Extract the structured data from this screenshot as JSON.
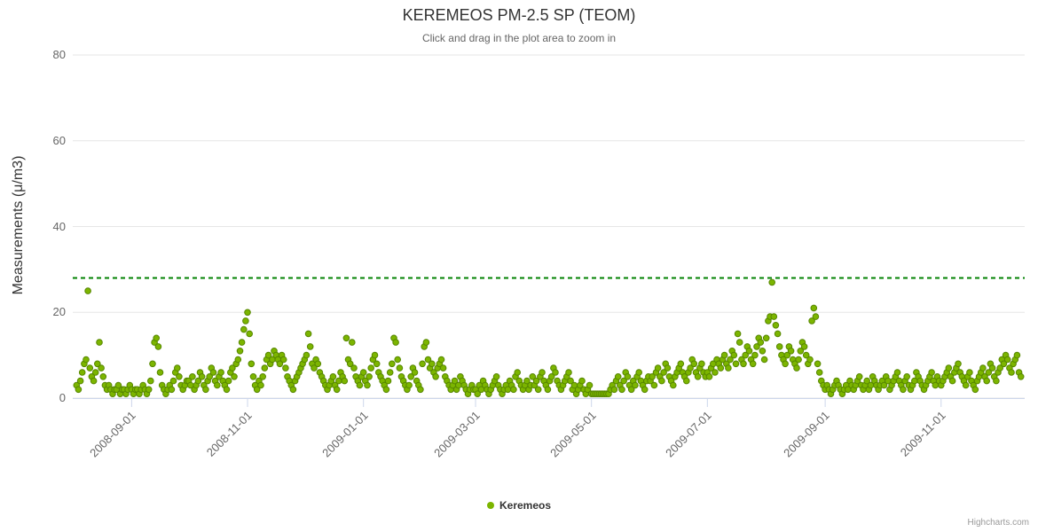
{
  "header": {
    "title": "KEREMEOS PM-2.5 SP (TEOM)",
    "subtitle": "Click and drag in the plot area to zoom in"
  },
  "legend": {
    "label": "Keremeos"
  },
  "credits": {
    "label": "Highcharts.com"
  },
  "colors": {
    "point_fill": "#7cb500",
    "point_stroke": "#568600",
    "threshold_line": "#008000",
    "gridline": "#e6e6e6",
    "axis_line": "#ccd6eb",
    "tick_mark": "#ccd6eb"
  },
  "chart_data": {
    "type": "scatter",
    "title": "KEREMEOS PM-2.5 SP (TEOM)",
    "subtitle": "Click and drag in the plot area to zoom in",
    "xlabel": "",
    "ylabel": "Measurements (μ/m3)",
    "ylim": [
      0,
      80
    ],
    "y_ticks": [
      0,
      20,
      40,
      60,
      80
    ],
    "grid": "horizontal-only",
    "legend_position": "bottom-center",
    "x_range": [
      "2008-08-01",
      "2009-12-15"
    ],
    "x_ticks": [
      "2008-09-01",
      "2008-11-01",
      "2009-01-01",
      "2009-03-01",
      "2009-05-01",
      "2009-07-01",
      "2009-09-01",
      "2009-11-01"
    ],
    "threshold": {
      "value": 28,
      "color": "#008000",
      "style": "dashed"
    },
    "series": [
      {
        "name": "Keremeos",
        "color": "#7cb500",
        "unit": "μ/m3",
        "cadence": "daily",
        "values_by_month": [
          {
            "m": "2008-08",
            "d": 3,
            "v": [
              3,
              2,
              4,
              6,
              8,
              9,
              25,
              7,
              5,
              4,
              6,
              8,
              13,
              7,
              5,
              3,
              2,
              3,
              2,
              1,
              2,
              2,
              3,
              1,
              2,
              2,
              1,
              2,
              3
            ]
          },
          {
            "m": "2008-09",
            "d": 1,
            "v": [
              2,
              1,
              2,
              2,
              1,
              2,
              3,
              2,
              1,
              2,
              4,
              8,
              13,
              14,
              12,
              6,
              3,
              2,
              1,
              2,
              3,
              2,
              4,
              6,
              7,
              5,
              3,
              2,
              3,
              4
            ]
          },
          {
            "m": "2008-10",
            "d": 1,
            "v": [
              4,
              3,
              5,
              2,
              3,
              4,
              6,
              5,
              3,
              2,
              4,
              5,
              7,
              6,
              4,
              3,
              5,
              6,
              4,
              3,
              2,
              4,
              6,
              7,
              5,
              8,
              9,
              11,
              13,
              16,
              18
            ]
          },
          {
            "m": "2008-11",
            "d": 1,
            "v": [
              20,
              15,
              8,
              5,
              3,
              2,
              4,
              3,
              5,
              7,
              9,
              10,
              8,
              9,
              11,
              10,
              9,
              8,
              10,
              9,
              7,
              5,
              4,
              3,
              2,
              4,
              5,
              6,
              7,
              8
            ]
          },
          {
            "m": "2008-12",
            "d": 1,
            "v": [
              9,
              10,
              15,
              12,
              8,
              7,
              9,
              8,
              6,
              5,
              4,
              3,
              2,
              3,
              4,
              5,
              3,
              2,
              4,
              6,
              5,
              4,
              14,
              9,
              8,
              13,
              7,
              5,
              4,
              3,
              5
            ]
          },
          {
            "m": "2009-01",
            "d": 1,
            "v": [
              6,
              4,
              3,
              5,
              7,
              9,
              10,
              8,
              6,
              5,
              4,
              3,
              2,
              4,
              6,
              8,
              14,
              13,
              9,
              7,
              5,
              4,
              3,
              2,
              3,
              5,
              7,
              6,
              4,
              3,
              2
            ]
          },
          {
            "m": "2009-02",
            "d": 1,
            "v": [
              8,
              12,
              13,
              9,
              7,
              8,
              6,
              5,
              7,
              8,
              9,
              7,
              5,
              4,
              3,
              2,
              3,
              4,
              2,
              3,
              5,
              4,
              3,
              2,
              1,
              2,
              3,
              2
            ]
          },
          {
            "m": "2009-03",
            "d": 1,
            "v": [
              2,
              1,
              3,
              2,
              4,
              3,
              2,
              1,
              2,
              3,
              4,
              5,
              3,
              2,
              1,
              2,
              3,
              2,
              4,
              3,
              2,
              5,
              6,
              4,
              3,
              2,
              3,
              4,
              2,
              3,
              5
            ]
          },
          {
            "m": "2009-04",
            "d": 1,
            "v": [
              3,
              4,
              2,
              5,
              6,
              4,
              3,
              2,
              4,
              5,
              7,
              6,
              4,
              3,
              2,
              3,
              4,
              5,
              6,
              4,
              2,
              3,
              1,
              2,
              3,
              4,
              2,
              1,
              2,
              3
            ]
          },
          {
            "m": "2009-05",
            "d": 1,
            "v": [
              1,
              1,
              1,
              1,
              1,
              1,
              1,
              1,
              1,
              1,
              2,
              3,
              2,
              4,
              5,
              3,
              2,
              4,
              6,
              5,
              3,
              2,
              4,
              3,
              5,
              6,
              4,
              3,
              2,
              4,
              5
            ]
          },
          {
            "m": "2009-06",
            "d": 1,
            "v": [
              4,
              5,
              3,
              6,
              7,
              5,
              4,
              6,
              8,
              7,
              5,
              4,
              3,
              5,
              6,
              7,
              8,
              6,
              5,
              4,
              6,
              7,
              9,
              8,
              6,
              5,
              7,
              8,
              6,
              5
            ]
          },
          {
            "m": "2009-07",
            "d": 1,
            "v": [
              6,
              5,
              7,
              8,
              6,
              9,
              8,
              7,
              9,
              10,
              8,
              7,
              9,
              11,
              10,
              8,
              15,
              13,
              9,
              8,
              10,
              12,
              11,
              9,
              8,
              10,
              12,
              14,
              13,
              11,
              9
            ]
          },
          {
            "m": "2009-08",
            "d": 1,
            "v": [
              14,
              18,
              19,
              27,
              19,
              17,
              15,
              12,
              10,
              9,
              8,
              10,
              12,
              11,
              9,
              8,
              7,
              9,
              11,
              13,
              12,
              10,
              8,
              9,
              18,
              21,
              19,
              8,
              6,
              4,
              3
            ]
          },
          {
            "m": "2009-09",
            "d": 1,
            "v": [
              2,
              3,
              2,
              1,
              2,
              3,
              4,
              3,
              2,
              1,
              2,
              3,
              2,
              4,
              3,
              2,
              3,
              4,
              5,
              3,
              2,
              3,
              4,
              2,
              3,
              5,
              4,
              3,
              2,
              3
            ]
          },
          {
            "m": "2009-10",
            "d": 1,
            "v": [
              4,
              3,
              5,
              4,
              2,
              3,
              4,
              5,
              6,
              4,
              3,
              2,
              4,
              5,
              3,
              2,
              3,
              4,
              6,
              5,
              4,
              3,
              2,
              3,
              4,
              5,
              6,
              4,
              3,
              5,
              4
            ]
          },
          {
            "m": "2009-11",
            "d": 1,
            "v": [
              3,
              4,
              5,
              6,
              7,
              5,
              4,
              6,
              7,
              8,
              6,
              5,
              4,
              3,
              5,
              6,
              4,
              3,
              2,
              4,
              5,
              6,
              7,
              5,
              4,
              6,
              8,
              7,
              5,
              4
            ]
          },
          {
            "m": "2009-12",
            "d": 1,
            "v": [
              6,
              7,
              9,
              8,
              10,
              9,
              7,
              6,
              8,
              9,
              10,
              6,
              5
            ]
          }
        ]
      }
    ]
  }
}
